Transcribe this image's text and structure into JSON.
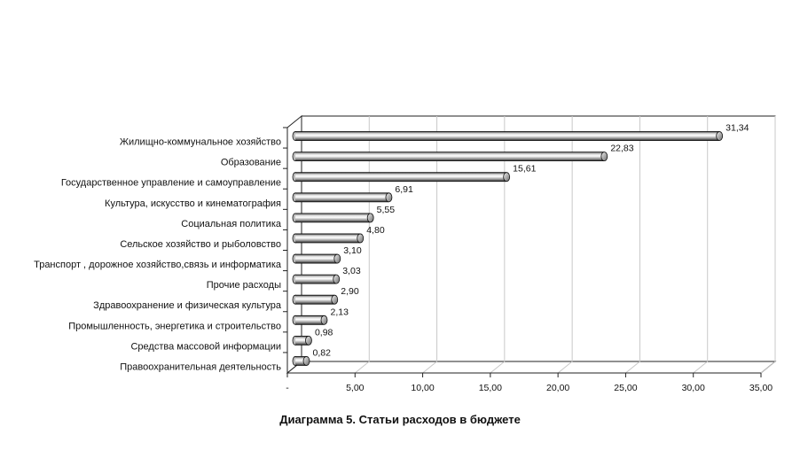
{
  "chart_data": {
    "type": "bar",
    "orientation": "horizontal",
    "title": "Диаграмма 5. Статьи расходов в бюджете",
    "categories": [
      "Жилищно-коммунальное хозяйство",
      "Образование",
      "Государственное управление и самоуправление",
      "Культура, искусство и кинематография",
      "Социальная политика",
      "Сельское хозяйство и рыболовство",
      "Транспорт , дорожное хозяйство,связь и информатика",
      "Прочие расходы",
      "Здравоохранение и физическая культура",
      "Промышленность, энергетика и строительство",
      "Средства массовой информации",
      "Правоохранительная деятельность"
    ],
    "values": [
      31.34,
      22.83,
      15.61,
      6.91,
      5.55,
      4.8,
      3.1,
      3.03,
      2.9,
      2.13,
      0.98,
      0.82
    ],
    "value_labels": [
      "31,34",
      "22,83",
      "15,61",
      "6,91",
      "5,55",
      "4,80",
      "3,10",
      "3,03",
      "2,90",
      "2,13",
      "0,98",
      "0,82"
    ],
    "xlim": [
      0,
      35
    ],
    "x_ticks": [
      0,
      5,
      10,
      15,
      20,
      25,
      30,
      35
    ],
    "x_tick_labels": [
      "-",
      "5,00",
      "10,00",
      "15,00",
      "20,00",
      "25,00",
      "30,00",
      "35,00"
    ],
    "grid": true,
    "style": "3d-cylinder",
    "bar_color": "#8a8a8a"
  }
}
